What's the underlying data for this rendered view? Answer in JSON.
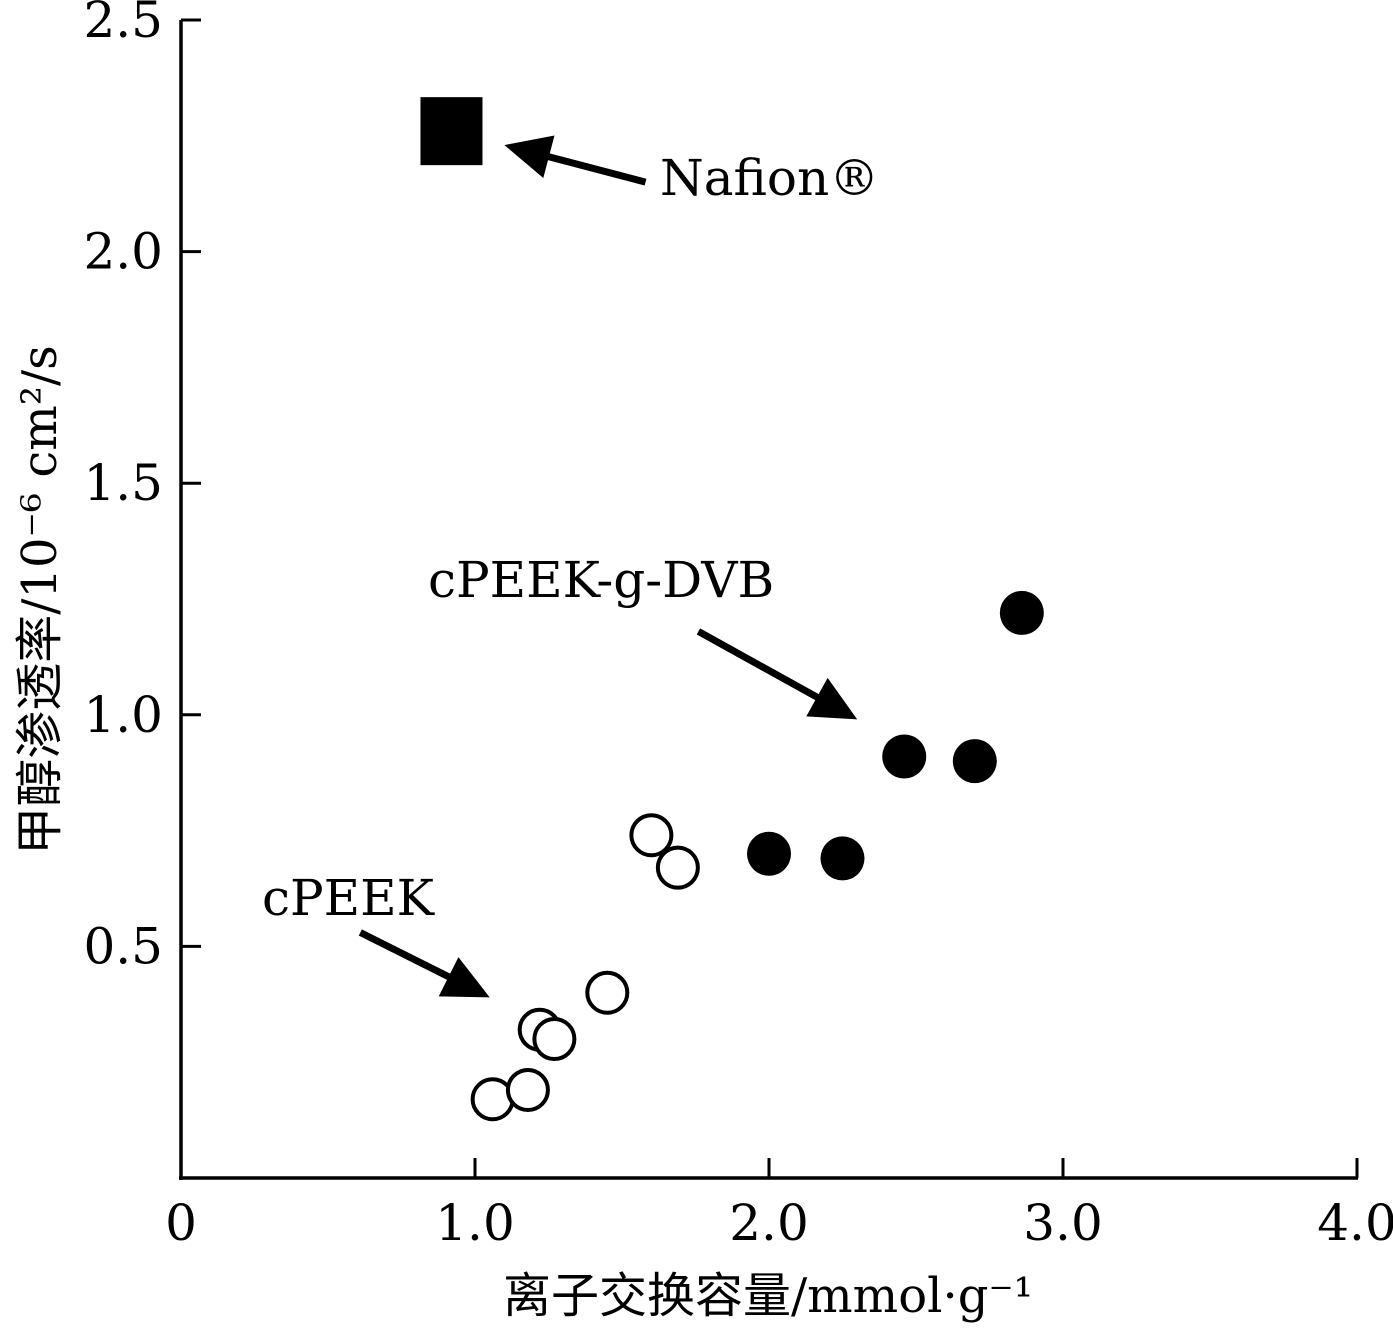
{
  "chart_data": {
    "type": "scatter",
    "xlabel": "离子交换容量/mmol·g⁻¹",
    "ylabel": "甲醇渗透率/10⁻⁶ cm²/s",
    "xlim": [
      0,
      4.0
    ],
    "ylim": [
      0,
      2.5
    ],
    "x_ticks": [
      {
        "value": 0,
        "label": "0"
      },
      {
        "value": 1.0,
        "label": "1.0"
      },
      {
        "value": 2.0,
        "label": "2.0"
      },
      {
        "value": 3.0,
        "label": "3.0"
      },
      {
        "value": 4.0,
        "label": "4.0"
      }
    ],
    "y_ticks": [
      {
        "value": 0.5,
        "label": "0.5"
      },
      {
        "value": 1.0,
        "label": "1.0"
      },
      {
        "value": 1.5,
        "label": "1.5"
      },
      {
        "value": 2.0,
        "label": "2.0"
      },
      {
        "value": 2.5,
        "label": "2.5"
      }
    ],
    "grid": false,
    "series": [
      {
        "name": "Nafion®",
        "marker": "filled-square",
        "color": "#000000",
        "points": [
          {
            "x": 0.92,
            "y": 2.26
          }
        ]
      },
      {
        "name": "cPEEK-g-DVB",
        "marker": "filled-circle",
        "color": "#000000",
        "points": [
          {
            "x": 2.0,
            "y": 0.7
          },
          {
            "x": 2.25,
            "y": 0.69
          },
          {
            "x": 2.46,
            "y": 0.91
          },
          {
            "x": 2.7,
            "y": 0.9
          },
          {
            "x": 2.86,
            "y": 1.22
          }
        ]
      },
      {
        "name": "cPEEK",
        "marker": "open-circle",
        "color": "#000000",
        "points": [
          {
            "x": 1.06,
            "y": 0.17
          },
          {
            "x": 1.18,
            "y": 0.19
          },
          {
            "x": 1.22,
            "y": 0.32
          },
          {
            "x": 1.27,
            "y": 0.3
          },
          {
            "x": 1.45,
            "y": 0.4
          },
          {
            "x": 1.6,
            "y": 0.74
          },
          {
            "x": 1.69,
            "y": 0.67
          }
        ]
      }
    ],
    "annotations": [
      {
        "text": "Nafion®",
        "target": {
          "x": 1.1,
          "y": 2.23
        },
        "from": {
          "x": 1.58,
          "y": 2.15
        }
      },
      {
        "text": "cPEEK-g-DVB",
        "target": {
          "x": 2.3,
          "y": 0.99
        },
        "from": {
          "x": 1.76,
          "y": 1.18
        }
      },
      {
        "text": "cPEEK",
        "target": {
          "x": 1.05,
          "y": 0.39
        },
        "from": {
          "x": 0.61,
          "y": 0.53
        }
      }
    ]
  }
}
